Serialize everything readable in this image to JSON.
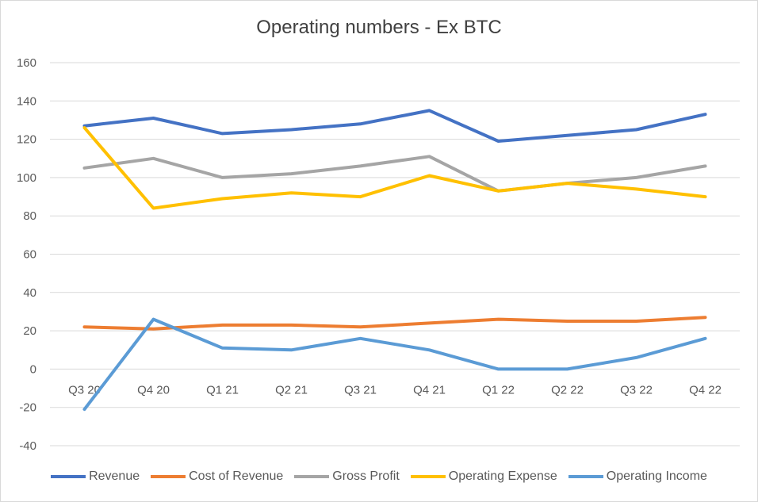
{
  "chart_data": {
    "type": "line",
    "title": "Operating numbers - Ex BTC",
    "categories": [
      "Q3 20",
      "Q4 20",
      "Q1 21",
      "Q2 21",
      "Q3 21",
      "Q4 21",
      "Q1 22",
      "Q2 22",
      "Q3 22",
      "Q4 22"
    ],
    "ylim": [
      -40,
      160
    ],
    "yticks": [
      "160",
      "140",
      "120",
      "100",
      "80",
      "60",
      "40",
      "20",
      "0",
      "-20",
      "-40"
    ],
    "grid": true,
    "legend_position": "bottom",
    "series": [
      {
        "name": "Revenue",
        "color": "#4472c4",
        "values": [
          127,
          131,
          123,
          125,
          128,
          135,
          119,
          122,
          125,
          133
        ]
      },
      {
        "name": "Cost of Revenue",
        "color": "#ed7d31",
        "values": [
          22,
          21,
          23,
          23,
          22,
          24,
          26,
          25,
          25,
          27
        ]
      },
      {
        "name": "Gross Profit",
        "color": "#a5a5a5",
        "values": [
          105,
          110,
          100,
          102,
          106,
          111,
          93,
          97,
          100,
          106
        ]
      },
      {
        "name": "Operating Expense",
        "color": "#ffc000",
        "values": [
          126,
          84,
          89,
          92,
          90,
          101,
          93,
          97,
          94,
          90
        ]
      },
      {
        "name": "Operating Income",
        "color": "#5b9bd5",
        "values": [
          -21,
          26,
          11,
          10,
          16,
          10,
          0,
          0,
          6,
          16
        ]
      }
    ]
  }
}
